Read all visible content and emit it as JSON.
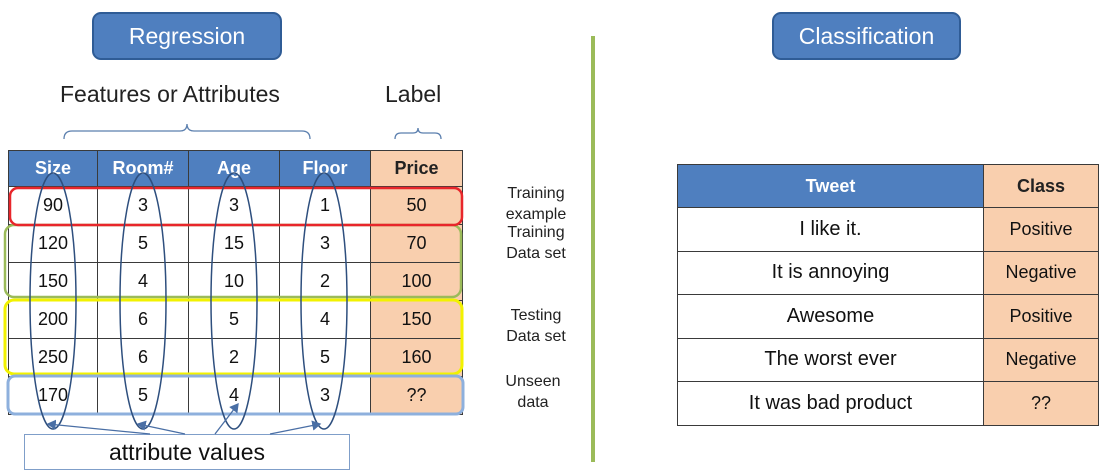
{
  "regression": {
    "title": "Regression",
    "features_caption": "Features or Attributes",
    "label_caption": "Label",
    "headers": [
      "Size",
      "Room#",
      "Age",
      "Floor",
      "Price"
    ],
    "rows": [
      [
        "90",
        "3",
        "3",
        "1",
        "50"
      ],
      [
        "120",
        "5",
        "15",
        "3",
        "70"
      ],
      [
        "150",
        "4",
        "10",
        "2",
        "100"
      ],
      [
        "200",
        "6",
        "5",
        "4",
        "150"
      ],
      [
        "250",
        "6",
        "2",
        "5",
        "160"
      ],
      [
        "170",
        "5",
        "4",
        "3",
        "??"
      ]
    ],
    "notes": {
      "training_example": [
        "Training",
        "example"
      ],
      "training_data_set": [
        "Training",
        "Data set"
      ],
      "testing_data_set": [
        "Testing",
        "Data set"
      ],
      "unseen_data": [
        "Unseen",
        "data"
      ]
    },
    "attribute_values_caption": "attribute values"
  },
  "classification": {
    "title": "Classification",
    "headers": [
      "Tweet",
      "Class"
    ],
    "rows": [
      [
        "I like it.",
        "Positive"
      ],
      [
        "It is annoying",
        "Negative"
      ],
      [
        "Awesome",
        "Positive"
      ],
      [
        "The worst ever",
        "Negative"
      ],
      [
        "It was bad product",
        "??"
      ]
    ]
  },
  "colors": {
    "header_blue": "#4f7fbf",
    "label_peach": "#f9cfae",
    "training_example": "#e8262b",
    "training_set": "#9bbb59",
    "testing_set": "#f2f200",
    "unseen": "#8eb0dd",
    "ellipse": "#2e4f7e",
    "divider": "#9bbb59"
  }
}
